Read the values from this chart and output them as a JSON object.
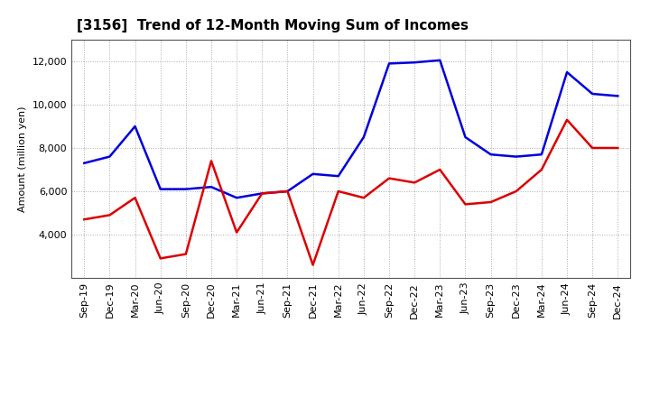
{
  "title": "[3156]  Trend of 12-Month Moving Sum of Incomes",
  "ylabel": "Amount (million yen)",
  "x_labels": [
    "Sep-19",
    "Dec-19",
    "Mar-20",
    "Jun-20",
    "Sep-20",
    "Dec-20",
    "Mar-21",
    "Jun-21",
    "Sep-21",
    "Dec-21",
    "Mar-22",
    "Jun-22",
    "Sep-22",
    "Dec-22",
    "Mar-23",
    "Jun-23",
    "Sep-23",
    "Dec-23",
    "Mar-24",
    "Jun-24",
    "Sep-24",
    "Dec-24"
  ],
  "ordinary_income": [
    7300,
    7600,
    9000,
    6100,
    6100,
    6200,
    5700,
    5900,
    6000,
    6800,
    6700,
    8500,
    11900,
    11950,
    12050,
    8500,
    7700,
    7600,
    7700,
    11500,
    10500,
    10400
  ],
  "net_income": [
    4700,
    4900,
    5700,
    2900,
    3100,
    7400,
    4100,
    5900,
    6000,
    2600,
    6000,
    5700,
    6600,
    6400,
    7000,
    5400,
    5500,
    6000,
    7000,
    9300,
    8000,
    8000
  ],
  "ordinary_color": "#0000dd",
  "net_color": "#dd0000",
  "ylim": [
    2000,
    13000
  ],
  "yticks": [
    4000,
    6000,
    8000,
    10000,
    12000
  ],
  "background_color": "#ffffff",
  "grid_color": "#aaaaaa",
  "title_fontsize": 11,
  "axis_label_fontsize": 8,
  "tick_fontsize": 8,
  "legend_fontsize": 9,
  "linewidth": 1.8
}
